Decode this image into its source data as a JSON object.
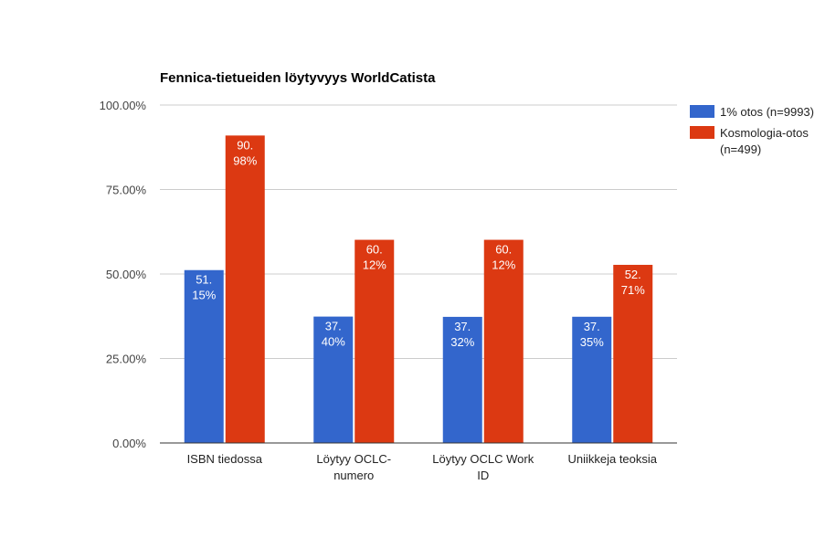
{
  "chart_data": {
    "type": "bar",
    "title": "Fennica-tietueiden löytyvyys WorldCatista",
    "categories": [
      [
        "ISBN tiedossa"
      ],
      [
        "Löytyy OCLC-",
        "numero"
      ],
      [
        "Löytyy OCLC Work",
        "ID"
      ],
      [
        "Uniikkeja teoksia"
      ]
    ],
    "series": [
      {
        "name": "1% otos (n=9993)",
        "color": "#3366cc",
        "values": [
          51.15,
          37.4,
          37.32,
          37.35
        ],
        "data_labels": [
          [
            "51.",
            "15%"
          ],
          [
            "37.",
            "40%"
          ],
          [
            "37.",
            "32%"
          ],
          [
            "37.",
            "35%"
          ]
        ]
      },
      {
        "name": "Kosmologia-otos (n=499)",
        "name_lines": [
          "Kosmologia-otos",
          "(n=499)"
        ],
        "color": "#dc3912",
        "values": [
          90.98,
          60.12,
          60.12,
          52.71
        ],
        "data_labels": [
          [
            "90.",
            "98%"
          ],
          [
            "60.",
            "12%"
          ],
          [
            "60.",
            "12%"
          ],
          [
            "52.",
            "71%"
          ]
        ]
      }
    ],
    "ylim": [
      0,
      100
    ],
    "yticks": [
      {
        "value": 100,
        "label": "100.00%"
      },
      {
        "value": 75,
        "label": "75.00%"
      },
      {
        "value": 50,
        "label": "50.00%"
      },
      {
        "value": 25,
        "label": "25.00%"
      },
      {
        "value": 0,
        "label": "0.00%"
      }
    ],
    "xlabel": "",
    "ylabel": "",
    "grid": true,
    "legend": "right"
  }
}
